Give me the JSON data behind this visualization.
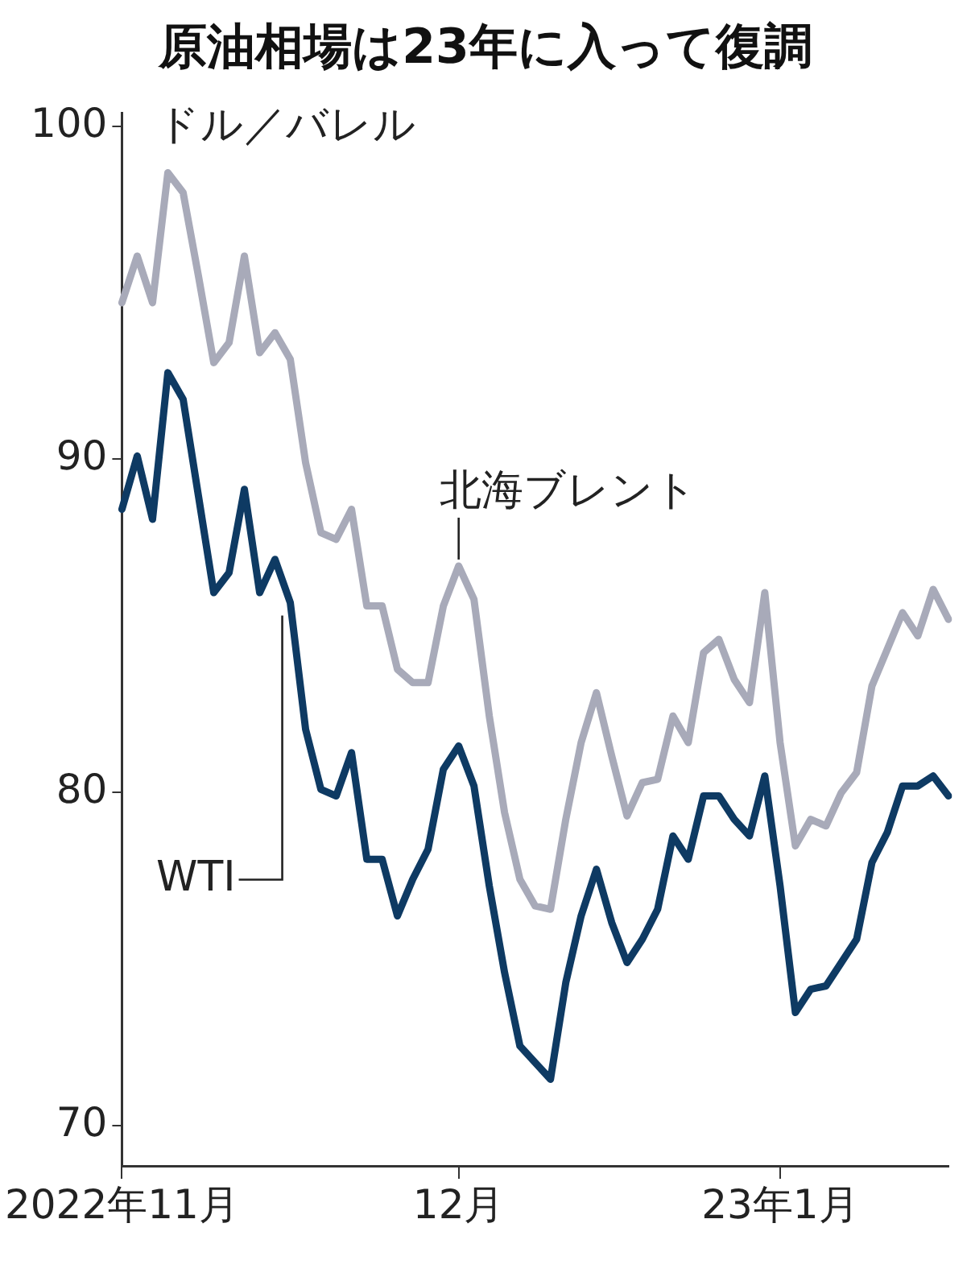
{
  "chart_data": {
    "type": "line",
    "title": "原油相場は23年に入って復調",
    "ylabel": "ドル／バレル",
    "categories": [
      "2022年11月",
      null,
      null,
      null,
      null,
      null,
      null,
      null,
      null,
      null,
      null,
      null,
      null,
      null,
      null,
      null,
      null,
      null,
      null,
      null,
      null,
      null,
      "12月",
      null,
      null,
      null,
      null,
      null,
      null,
      null,
      null,
      null,
      null,
      null,
      null,
      null,
      null,
      null,
      null,
      null,
      null,
      null,
      null,
      "23年1月",
      null,
      null,
      null,
      null,
      null,
      null,
      null,
      null,
      null,
      null,
      null
    ],
    "series": [
      {
        "name": "北海ブレント",
        "color": "#a8aab9",
        "values": [
          94.7,
          96.1,
          94.7,
          98.6,
          98.0,
          95.5,
          92.9,
          93.5,
          96.1,
          93.2,
          93.8,
          93.0,
          89.9,
          87.8,
          87.6,
          88.5,
          85.6,
          85.6,
          83.7,
          83.3,
          83.3,
          85.6,
          86.8,
          85.8,
          82.3,
          79.4,
          77.4,
          76.6,
          76.5,
          79.2,
          81.5,
          83.0,
          81.1,
          79.3,
          80.3,
          80.4,
          82.3,
          81.5,
          84.2,
          84.6,
          83.4,
          82.7,
          86.0,
          81.5,
          78.4,
          79.2,
          79.0,
          80.0,
          80.6,
          83.2,
          84.3,
          85.4,
          84.7,
          86.1,
          85.2
        ]
      },
      {
        "name": "WTI",
        "color": "#0e3a63",
        "values": [
          88.5,
          90.1,
          88.2,
          92.6,
          91.8,
          88.9,
          86.0,
          86.6,
          89.1,
          86.0,
          87.0,
          85.7,
          81.9,
          80.1,
          79.9,
          81.2,
          78.0,
          78.0,
          76.3,
          77.4,
          78.3,
          80.7,
          81.4,
          80.2,
          77.2,
          74.6,
          72.4,
          71.9,
          71.4,
          74.3,
          76.3,
          77.7,
          76.1,
          74.9,
          75.6,
          76.5,
          78.7,
          78.0,
          79.9,
          79.9,
          79.2,
          78.7,
          80.5,
          77.2,
          73.4,
          74.1,
          74.2,
          74.9,
          75.6,
          77.9,
          78.8,
          80.2,
          80.2,
          80.5,
          79.9
        ]
      }
    ],
    "ylim": [
      68.8,
      100.4
    ],
    "yticks": [
      70,
      80,
      90,
      100
    ],
    "grid": false,
    "legend": false,
    "marker": "none",
    "line_style": "solid"
  }
}
